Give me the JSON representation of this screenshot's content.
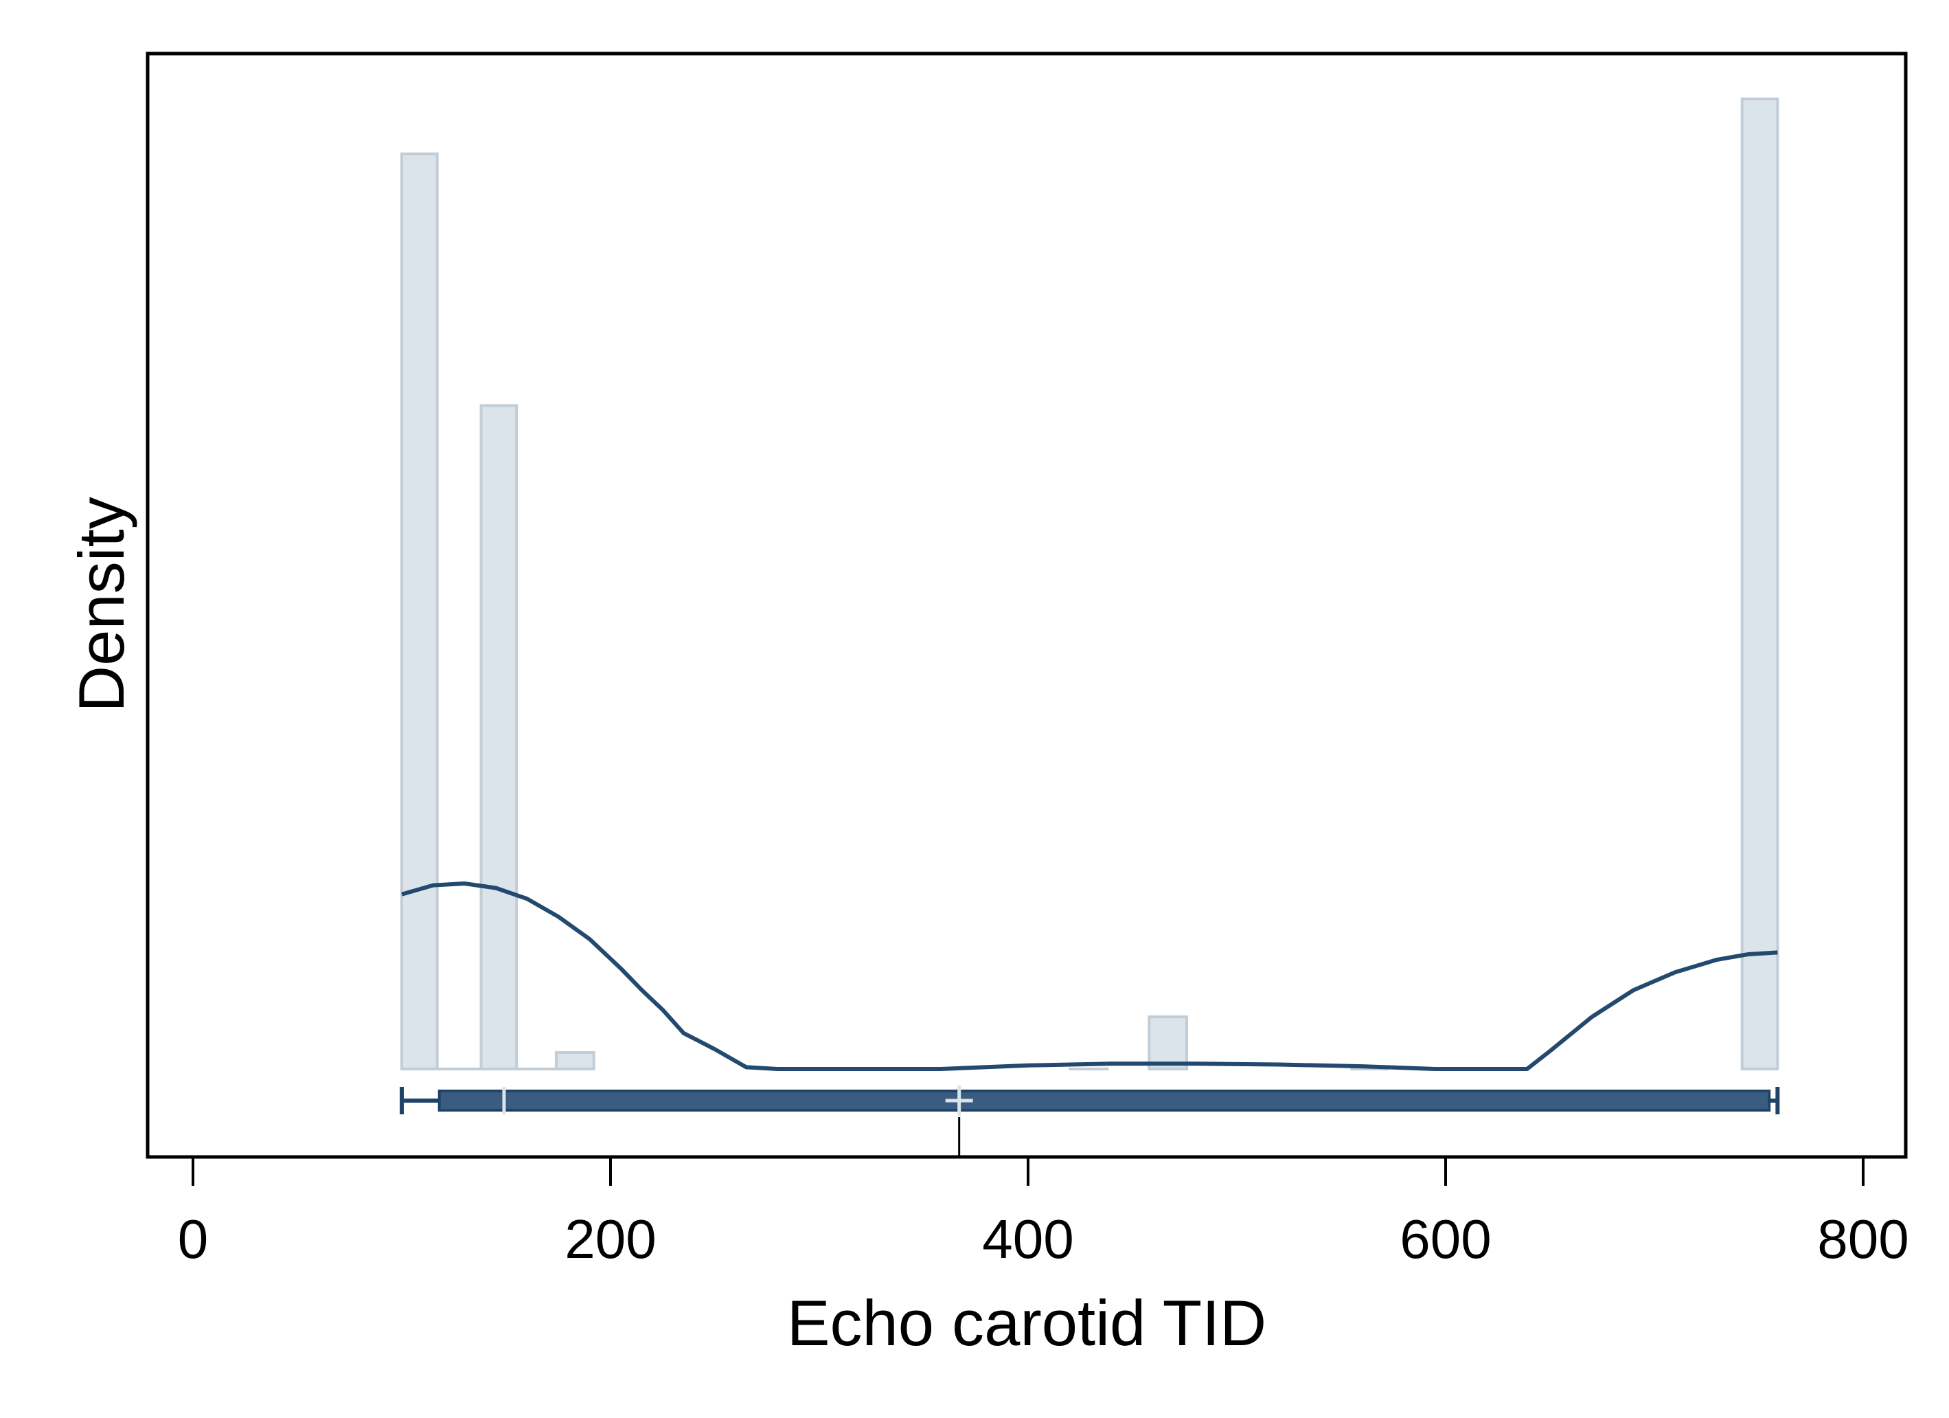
{
  "chart_data": {
    "type": "bar",
    "title": "",
    "xlabel": "Echo carotid TID",
    "ylabel": "Density",
    "xlim": [
      -22,
      820
    ],
    "x_ticks": [
      0,
      200,
      400,
      600,
      800
    ],
    "x_tick_labels": [
      "0",
      "200",
      "400",
      "600",
      "800"
    ],
    "y_ticks_shown": false,
    "grid": false,
    "legend": "none",
    "colors": {
      "histogram_fill": "#dbe3eb",
      "histogram_stroke": "#c3cdd6",
      "density_line": "#24496f",
      "boxplot_fill": "#3a5c80",
      "boxplot_stroke": "#1f4468",
      "boxplot_marks": "#dbe3eb"
    },
    "histogram": {
      "bin_width": 17,
      "bins": [
        {
          "x0": 100,
          "x1": 117,
          "height": 1.0
        },
        {
          "x0": 117,
          "x1": 138,
          "height": 0.0
        },
        {
          "x0": 138,
          "x1": 155,
          "height": 0.725
        },
        {
          "x0": 155,
          "x1": 174,
          "height": 0.0
        },
        {
          "x0": 174,
          "x1": 192,
          "height": 0.018
        },
        {
          "x0": 420,
          "x1": 438,
          "height": 0.0
        },
        {
          "x0": 458,
          "x1": 476,
          "height": 0.057
        },
        {
          "x0": 555,
          "x1": 572,
          "height": 0.0
        },
        {
          "x0": 742,
          "x1": 759,
          "height": 1.06
        }
      ]
    },
    "density_curve": {
      "x": [
        100,
        115,
        130,
        145,
        160,
        175,
        190,
        205,
        215,
        225,
        235,
        250,
        265,
        280,
        300,
        330,
        358,
        400,
        440,
        480,
        520,
        560,
        595,
        610,
        625,
        639,
        650,
        670,
        690,
        710,
        730,
        745,
        759
      ],
      "y": [
        0.195,
        0.205,
        0.207,
        0.202,
        0.19,
        0.17,
        0.145,
        0.112,
        0.088,
        0.066,
        0.04,
        0.022,
        0.002,
        0.0,
        0.0,
        0.0,
        0.0,
        0.004,
        0.006,
        0.006,
        0.005,
        0.003,
        0.0,
        0.0,
        0.0,
        0.0,
        0.02,
        0.058,
        0.088,
        0.108,
        0.122,
        0.128,
        0.13
      ]
    },
    "boxplot": {
      "whisker_low": 100,
      "q1": 118,
      "median": 149,
      "mean": 367,
      "q3": 755,
      "whisker_high": 759
    }
  }
}
